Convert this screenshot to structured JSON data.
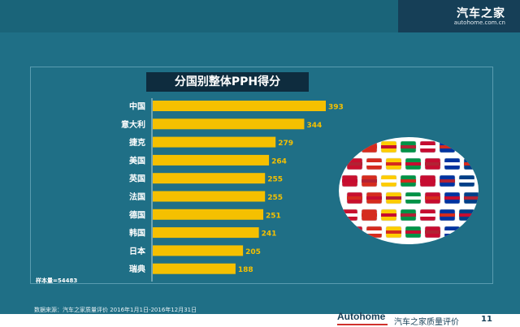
{
  "header": {
    "logo_main": "汽车之家",
    "logo_sub": "autohome.com.cn"
  },
  "chart_data": {
    "type": "bar",
    "orientation": "horizontal",
    "title": "分国别整体PPH得分",
    "categories": [
      "中国",
      "意大利",
      "捷克",
      "美国",
      "英国",
      "法国",
      "德国",
      "韩国",
      "日本",
      "瑞典"
    ],
    "values": [
      393,
      344,
      279,
      264,
      255,
      255,
      251,
      241,
      205,
      188
    ],
    "bar_color": "#f5c000",
    "label_color": "#f5c000",
    "xlim": [
      0,
      400
    ]
  },
  "sample_note": "样本量=54483",
  "source_note": "数据来源：汽车之家质量评价 2016年1月1日-2016年12月31日",
  "footer": {
    "brand": "Autohome",
    "title": "汽车之家质量评价",
    "page": "11"
  },
  "colors": {
    "background": "#1f6f86",
    "title_bg": "#0e2c3e",
    "flag_tile_colors": [
      "#c8102e",
      "#0033a0",
      "#ffffff",
      "#009246",
      "#ffcd00",
      "#d52b1e",
      "#003f87",
      "#e8e8e8",
      "#c60c30",
      "#006aa7",
      "#fecc00",
      "#b22234"
    ]
  },
  "decor": {
    "flags_icon": "flag-collage-icon"
  }
}
